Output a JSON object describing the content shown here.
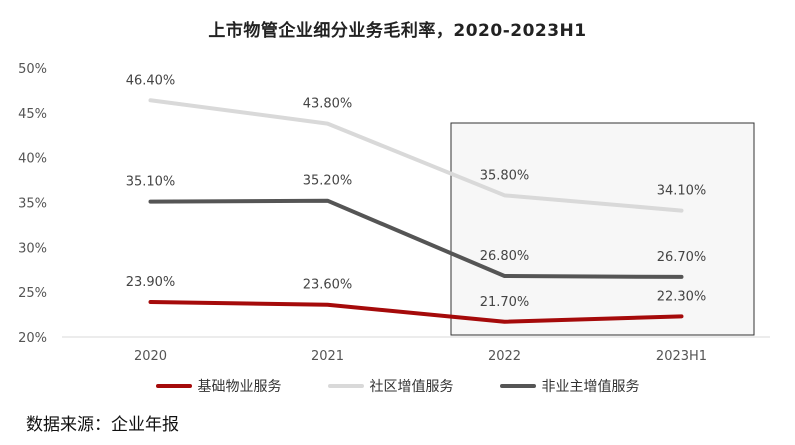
{
  "chart_data": {
    "type": "line",
    "title": "上市物管企业细分业务毛利率，2020-2023H1",
    "categories": [
      "2020",
      "2021",
      "2022",
      "2023H1"
    ],
    "series": [
      {
        "name": "基础物业服务",
        "values": [
          23.9,
          23.6,
          21.7,
          22.3
        ],
        "labels": [
          "23.90%",
          "23.60%",
          "21.70%",
          "22.30%"
        ],
        "color": "#a50a0a"
      },
      {
        "name": "社区增值服务",
        "values": [
          46.4,
          43.8,
          35.8,
          34.1
        ],
        "labels": [
          "46.40%",
          "43.80%",
          "35.80%",
          "34.10%"
        ],
        "color": "#d9d9d9"
      },
      {
        "name": "非业主增值服务",
        "values": [
          35.1,
          35.2,
          26.8,
          26.7
        ],
        "labels": [
          "35.10%",
          "35.20%",
          "26.80%",
          "26.70%"
        ],
        "color": "#555555"
      }
    ],
    "yticks": [
      "20%",
      "25%",
      "30%",
      "35%",
      "40%",
      "45%",
      "50%"
    ],
    "ylim": [
      20,
      50
    ],
    "xlabel": "",
    "ylabel": "",
    "grid": false,
    "highlight_region": "2022–2023H1",
    "legend": "bottom"
  },
  "source": "数据来源：企业年报"
}
